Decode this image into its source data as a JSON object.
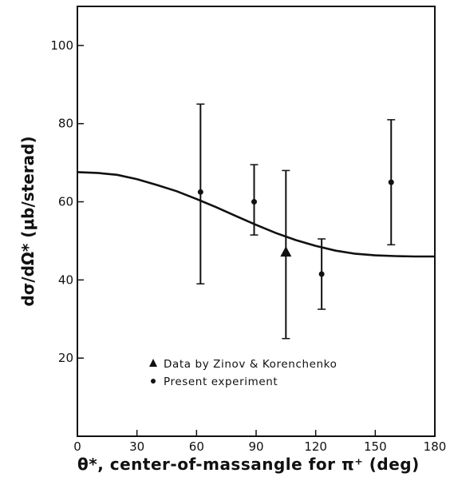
{
  "chart_data": {
    "type": "scatter",
    "title": "",
    "xlabel": "θ*, center-of-massangle for π⁺ (deg)",
    "ylabel": "dσ/dΩ* (μb/sterad)",
    "xlim": [
      0,
      180
    ],
    "ylim": [
      0,
      110
    ],
    "xticks": [
      0,
      30,
      60,
      90,
      120,
      150,
      180
    ],
    "yticks": [
      20,
      40,
      60,
      80,
      100
    ],
    "grid": false,
    "legend_position": "bottom-left",
    "series": [
      {
        "name": "Data by Zinov & Korenchenko",
        "marker": "triangle",
        "points": [
          {
            "x": 105,
            "y": 47,
            "err_low": 25,
            "err_high": 68
          }
        ]
      },
      {
        "name": "Present experiment",
        "marker": "circle",
        "points": [
          {
            "x": 62,
            "y": 62.5,
            "err_low": 39,
            "err_high": 85
          },
          {
            "x": 89,
            "y": 60,
            "err_low": 51.5,
            "err_high": 69.5
          },
          {
            "x": 123,
            "y": 41.5,
            "err_low": 32.5,
            "err_high": 50.5
          },
          {
            "x": 158,
            "y": 65,
            "err_low": 49,
            "err_high": 81
          }
        ]
      }
    ],
    "curve": {
      "x": [
        0,
        10,
        20,
        30,
        40,
        50,
        60,
        70,
        80,
        90,
        100,
        110,
        120,
        130,
        140,
        150,
        160,
        170,
        180
      ],
      "y": [
        67.6,
        67.4,
        66.9,
        65.8,
        64.3,
        62.7,
        60.7,
        58.6,
        56.3,
        54.1,
        52.0,
        50.2,
        48.7,
        47.5,
        46.7,
        46.3,
        46.1,
        46.0,
        46.0
      ]
    }
  }
}
